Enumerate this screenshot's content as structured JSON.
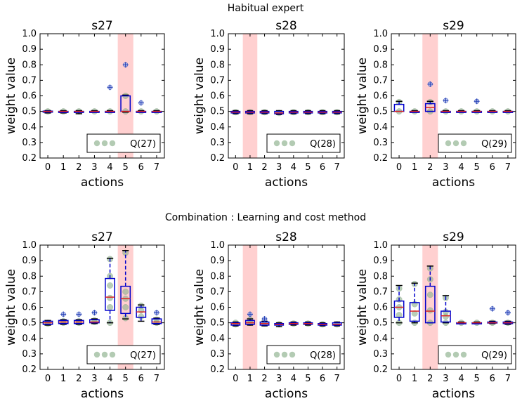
{
  "section_titles": [
    "Habitual expert",
    "Combination : Learning and cost method"
  ],
  "colors": {
    "box": "#0000cc",
    "median": "#dd2222",
    "highlight": "#ffaaaa",
    "point": "#93b593",
    "outlier": "#1f3bb3",
    "legend_point": "#93b593"
  },
  "chart_data": [
    {
      "type": "box",
      "section": "Habitual expert",
      "title": "s27",
      "xlabel": "actions",
      "ylabel": "weight value",
      "x_ticks": [
        "0",
        "1",
        "2",
        "3",
        "4",
        "5",
        "6",
        "7"
      ],
      "ylim": [
        0.2,
        1.0
      ],
      "y_ticks": [
        "0.2",
        "0.3",
        "0.4",
        "0.5",
        "0.6",
        "0.7",
        "0.8",
        "0.9",
        "1.0"
      ],
      "highlight_action": 5,
      "legend": "Q(27)",
      "boxes": [
        {
          "action": 0,
          "q1": 0.495,
          "median": 0.5,
          "q3": 0.502,
          "wlo": 0.49,
          "whi": 0.505,
          "outliers": []
        },
        {
          "action": 1,
          "q1": 0.495,
          "median": 0.5,
          "q3": 0.5,
          "wlo": 0.49,
          "whi": 0.505,
          "outliers": []
        },
        {
          "action": 2,
          "q1": 0.495,
          "median": 0.5,
          "q3": 0.5,
          "wlo": 0.485,
          "whi": 0.505,
          "outliers": []
        },
        {
          "action": 3,
          "q1": 0.5,
          "median": 0.5,
          "q3": 0.5,
          "wlo": 0.495,
          "whi": 0.505,
          "outliers": []
        },
        {
          "action": 4,
          "q1": 0.5,
          "median": 0.5,
          "q3": 0.5,
          "wlo": 0.495,
          "whi": 0.505,
          "outliers": [
            0.655
          ]
        },
        {
          "action": 5,
          "q1": 0.5,
          "median": 0.5,
          "q3": 0.6,
          "wlo": 0.495,
          "whi": 0.605,
          "outliers": [
            0.8
          ]
        },
        {
          "action": 6,
          "q1": 0.5,
          "median": 0.5,
          "q3": 0.5,
          "wlo": 0.495,
          "whi": 0.505,
          "outliers": [
            0.555
          ]
        },
        {
          "action": 7,
          "q1": 0.5,
          "median": 0.5,
          "q3": 0.5,
          "wlo": 0.495,
          "whi": 0.505,
          "outliers": []
        }
      ],
      "points": [
        {
          "action": 0,
          "values": [
            0.5
          ]
        },
        {
          "action": 1,
          "values": [
            0.5
          ]
        },
        {
          "action": 2,
          "values": [
            0.5
          ]
        },
        {
          "action": 3,
          "values": [
            0.5
          ]
        },
        {
          "action": 4,
          "values": [
            0.5
          ]
        },
        {
          "action": 5,
          "values": [
            0.5,
            0.6
          ]
        },
        {
          "action": 6,
          "values": [
            0.5
          ]
        },
        {
          "action": 7,
          "values": [
            0.5
          ]
        }
      ]
    },
    {
      "type": "box",
      "section": "Habitual expert",
      "title": "s28",
      "xlabel": "actions",
      "ylabel": "weight value",
      "x_ticks": [
        "0",
        "1",
        "2",
        "3",
        "4",
        "5",
        "6",
        "7"
      ],
      "ylim": [
        0.2,
        1.0
      ],
      "y_ticks": [
        "0.2",
        "0.3",
        "0.4",
        "0.5",
        "0.6",
        "0.7",
        "0.8",
        "0.9",
        "1.0"
      ],
      "highlight_action": 1,
      "legend": "Q(28)",
      "boxes": [
        {
          "action": 0,
          "q1": 0.49,
          "median": 0.495,
          "q3": 0.5,
          "wlo": 0.485,
          "whi": 0.505,
          "outliers": []
        },
        {
          "action": 1,
          "q1": 0.49,
          "median": 0.495,
          "q3": 0.5,
          "wlo": 0.485,
          "whi": 0.505,
          "outliers": []
        },
        {
          "action": 2,
          "q1": 0.49,
          "median": 0.495,
          "q3": 0.5,
          "wlo": 0.485,
          "whi": 0.505,
          "outliers": []
        },
        {
          "action": 3,
          "q1": 0.485,
          "median": 0.49,
          "q3": 0.5,
          "wlo": 0.48,
          "whi": 0.505,
          "outliers": []
        },
        {
          "action": 4,
          "q1": 0.49,
          "median": 0.495,
          "q3": 0.5,
          "wlo": 0.485,
          "whi": 0.505,
          "outliers": []
        },
        {
          "action": 5,
          "q1": 0.49,
          "median": 0.495,
          "q3": 0.5,
          "wlo": 0.485,
          "whi": 0.505,
          "outliers": []
        },
        {
          "action": 6,
          "q1": 0.49,
          "median": 0.495,
          "q3": 0.5,
          "wlo": 0.485,
          "whi": 0.505,
          "outliers": []
        },
        {
          "action": 7,
          "q1": 0.49,
          "median": 0.495,
          "q3": 0.5,
          "wlo": 0.485,
          "whi": 0.505,
          "outliers": []
        }
      ],
      "points": [
        {
          "action": 0,
          "values": [
            0.495
          ]
        },
        {
          "action": 1,
          "values": [
            0.495
          ]
        },
        {
          "action": 2,
          "values": [
            0.495
          ]
        },
        {
          "action": 3,
          "values": [
            0.49
          ]
        },
        {
          "action": 4,
          "values": [
            0.495
          ]
        },
        {
          "action": 5,
          "values": [
            0.495
          ]
        },
        {
          "action": 6,
          "values": [
            0.495
          ]
        },
        {
          "action": 7,
          "values": [
            0.495
          ]
        }
      ]
    },
    {
      "type": "box",
      "section": "Habitual expert",
      "title": "s29",
      "xlabel": "actions",
      "ylabel": "weight value",
      "x_ticks": [
        "0",
        "1",
        "2",
        "3",
        "4",
        "5",
        "6",
        "7"
      ],
      "ylim": [
        0.2,
        1.0
      ],
      "y_ticks": [
        "0.2",
        "0.3",
        "0.4",
        "0.5",
        "0.6",
        "0.7",
        "0.8",
        "0.9",
        "1.0"
      ],
      "highlight_action": 2,
      "legend": "Q(29)",
      "boxes": [
        {
          "action": 0,
          "q1": 0.5,
          "median": 0.5,
          "q3": 0.545,
          "wlo": 0.5,
          "whi": 0.565,
          "outliers": []
        },
        {
          "action": 1,
          "q1": 0.5,
          "median": 0.5,
          "q3": 0.5,
          "wlo": 0.495,
          "whi": 0.505,
          "outliers": []
        },
        {
          "action": 2,
          "q1": 0.5,
          "median": 0.525,
          "q3": 0.55,
          "wlo": 0.5,
          "whi": 0.565,
          "outliers": [
            0.675
          ]
        },
        {
          "action": 3,
          "q1": 0.5,
          "median": 0.5,
          "q3": 0.5,
          "wlo": 0.495,
          "whi": 0.505,
          "outliers": [
            0.57
          ]
        },
        {
          "action": 4,
          "q1": 0.5,
          "median": 0.5,
          "q3": 0.5,
          "wlo": 0.495,
          "whi": 0.505,
          "outliers": []
        },
        {
          "action": 5,
          "q1": 0.5,
          "median": 0.5,
          "q3": 0.5,
          "wlo": 0.495,
          "whi": 0.505,
          "outliers": [
            0.565
          ]
        },
        {
          "action": 6,
          "q1": 0.5,
          "median": 0.5,
          "q3": 0.5,
          "wlo": 0.495,
          "whi": 0.505,
          "outliers": []
        },
        {
          "action": 7,
          "q1": 0.5,
          "median": 0.5,
          "q3": 0.5,
          "wlo": 0.495,
          "whi": 0.505,
          "outliers": []
        }
      ],
      "points": [
        {
          "action": 0,
          "values": [
            0.5,
            0.56
          ]
        },
        {
          "action": 1,
          "values": [
            0.5
          ]
        },
        {
          "action": 2,
          "values": [
            0.5,
            0.56
          ]
        },
        {
          "action": 3,
          "values": [
            0.5
          ]
        },
        {
          "action": 4,
          "values": [
            0.5
          ]
        },
        {
          "action": 5,
          "values": [
            0.5
          ]
        },
        {
          "action": 6,
          "values": [
            0.5
          ]
        },
        {
          "action": 7,
          "values": [
            0.5
          ]
        }
      ]
    },
    {
      "type": "box",
      "section": "Combination : Learning and cost method",
      "title": "s27",
      "xlabel": "actions",
      "ylabel": "weight value",
      "x_ticks": [
        "0",
        "1",
        "2",
        "3",
        "4",
        "5",
        "6",
        "7"
      ],
      "ylim": [
        0.2,
        1.0
      ],
      "y_ticks": [
        "0.2",
        "0.3",
        "0.4",
        "0.5",
        "0.6",
        "0.7",
        "0.8",
        "0.9",
        "1.0"
      ],
      "highlight_action": 5,
      "legend": "Q(27)",
      "boxes": [
        {
          "action": 0,
          "q1": 0.49,
          "median": 0.5,
          "q3": 0.51,
          "wlo": 0.485,
          "whi": 0.515,
          "outliers": []
        },
        {
          "action": 1,
          "q1": 0.495,
          "median": 0.505,
          "q3": 0.515,
          "wlo": 0.49,
          "whi": 0.52,
          "outliers": [
            0.555
          ]
        },
        {
          "action": 2,
          "q1": 0.495,
          "median": 0.505,
          "q3": 0.515,
          "wlo": 0.49,
          "whi": 0.52,
          "outliers": [
            0.555
          ]
        },
        {
          "action": 3,
          "q1": 0.5,
          "median": 0.505,
          "q3": 0.52,
          "wlo": 0.495,
          "whi": 0.525,
          "outliers": [
            0.565
          ]
        },
        {
          "action": 4,
          "q1": 0.58,
          "median": 0.665,
          "q3": 0.785,
          "wlo": 0.5,
          "whi": 0.915,
          "outliers": []
        },
        {
          "action": 5,
          "q1": 0.56,
          "median": 0.655,
          "q3": 0.735,
          "wlo": 0.525,
          "whi": 0.965,
          "outliers": []
        },
        {
          "action": 6,
          "q1": 0.535,
          "median": 0.57,
          "q3": 0.6,
          "wlo": 0.51,
          "whi": 0.615,
          "outliers": []
        },
        {
          "action": 7,
          "q1": 0.495,
          "median": 0.505,
          "q3": 0.525,
          "wlo": 0.49,
          "whi": 0.53,
          "outliers": [
            0.565
          ]
        }
      ],
      "points": [
        {
          "action": 0,
          "values": [
            0.5,
            0.495
          ]
        },
        {
          "action": 1,
          "values": [
            0.5,
            0.51
          ]
        },
        {
          "action": 2,
          "values": [
            0.5,
            0.51
          ]
        },
        {
          "action": 3,
          "values": [
            0.505,
            0.515
          ]
        },
        {
          "action": 4,
          "values": [
            0.5,
            0.6,
            0.66,
            0.74,
            0.8,
            0.91
          ]
        },
        {
          "action": 5,
          "values": [
            0.53,
            0.6,
            0.655,
            0.7,
            0.95
          ]
        },
        {
          "action": 6,
          "values": [
            0.54,
            0.58,
            0.61
          ]
        },
        {
          "action": 7,
          "values": [
            0.5,
            0.52
          ]
        }
      ]
    },
    {
      "type": "box",
      "section": "Combination : Learning and cost method",
      "title": "s28",
      "xlabel": "actions",
      "ylabel": "weight value",
      "x_ticks": [
        "0",
        "1",
        "2",
        "3",
        "4",
        "5",
        "6",
        "7"
      ],
      "ylim": [
        0.2,
        1.0
      ],
      "y_ticks": [
        "0.2",
        "0.3",
        "0.4",
        "0.5",
        "0.6",
        "0.7",
        "0.8",
        "0.9",
        "1.0"
      ],
      "highlight_action": 1,
      "legend": "Q(28)",
      "boxes": [
        {
          "action": 0,
          "q1": 0.485,
          "median": 0.495,
          "q3": 0.5,
          "wlo": 0.48,
          "whi": 0.505,
          "outliers": []
        },
        {
          "action": 1,
          "q1": 0.49,
          "median": 0.5,
          "q3": 0.515,
          "wlo": 0.485,
          "whi": 0.525,
          "outliers": [
            0.555
          ]
        },
        {
          "action": 2,
          "q1": 0.485,
          "median": 0.495,
          "q3": 0.505,
          "wlo": 0.48,
          "whi": 0.51,
          "outliers": [
            0.525
          ]
        },
        {
          "action": 3,
          "q1": 0.485,
          "median": 0.49,
          "q3": 0.495,
          "wlo": 0.475,
          "whi": 0.5,
          "outliers": []
        },
        {
          "action": 4,
          "q1": 0.49,
          "median": 0.495,
          "q3": 0.5,
          "wlo": 0.485,
          "whi": 0.505,
          "outliers": []
        },
        {
          "action": 5,
          "q1": 0.49,
          "median": 0.495,
          "q3": 0.5,
          "wlo": 0.485,
          "whi": 0.505,
          "outliers": []
        },
        {
          "action": 6,
          "q1": 0.485,
          "median": 0.49,
          "q3": 0.495,
          "wlo": 0.48,
          "whi": 0.5,
          "outliers": []
        },
        {
          "action": 7,
          "q1": 0.485,
          "median": 0.49,
          "q3": 0.5,
          "wlo": 0.48,
          "whi": 0.505,
          "outliers": []
        }
      ],
      "points": [
        {
          "action": 0,
          "values": [
            0.49,
            0.5
          ]
        },
        {
          "action": 1,
          "values": [
            0.5,
            0.52
          ]
        },
        {
          "action": 2,
          "values": [
            0.495
          ]
        },
        {
          "action": 3,
          "values": [
            0.49
          ]
        },
        {
          "action": 4,
          "values": [
            0.495
          ]
        },
        {
          "action": 5,
          "values": [
            0.495
          ]
        },
        {
          "action": 6,
          "values": [
            0.49
          ]
        },
        {
          "action": 7,
          "values": [
            0.49
          ]
        }
      ]
    },
    {
      "type": "box",
      "section": "Combination : Learning and cost method",
      "title": "s29",
      "xlabel": "actions",
      "ylabel": "weight value",
      "x_ticks": [
        "0",
        "1",
        "2",
        "3",
        "4",
        "5",
        "6",
        "7"
      ],
      "ylim": [
        0.2,
        1.0
      ],
      "y_ticks": [
        "0.2",
        "0.3",
        "0.4",
        "0.5",
        "0.6",
        "0.7",
        "0.8",
        "0.9",
        "1.0"
      ],
      "highlight_action": 2,
      "legend": "Q(29)",
      "boxes": [
        {
          "action": 0,
          "q1": 0.535,
          "median": 0.6,
          "q3": 0.64,
          "wlo": 0.5,
          "whi": 0.74,
          "outliers": []
        },
        {
          "action": 1,
          "q1": 0.51,
          "median": 0.575,
          "q3": 0.63,
          "wlo": 0.5,
          "whi": 0.755,
          "outliers": []
        },
        {
          "action": 2,
          "q1": 0.5,
          "median": 0.575,
          "q3": 0.735,
          "wlo": 0.5,
          "whi": 0.865,
          "outliers": []
        },
        {
          "action": 3,
          "q1": 0.505,
          "median": 0.545,
          "q3": 0.575,
          "wlo": 0.5,
          "whi": 0.675,
          "outliers": []
        },
        {
          "action": 4,
          "q1": 0.5,
          "median": 0.5,
          "q3": 0.5,
          "wlo": 0.495,
          "whi": 0.505,
          "outliers": []
        },
        {
          "action": 5,
          "q1": 0.5,
          "median": 0.5,
          "q3": 0.5,
          "wlo": 0.495,
          "whi": 0.505,
          "outliers": []
        },
        {
          "action": 6,
          "q1": 0.5,
          "median": 0.5,
          "q3": 0.505,
          "wlo": 0.495,
          "whi": 0.51,
          "outliers": [
            0.59
          ]
        },
        {
          "action": 7,
          "q1": 0.495,
          "median": 0.5,
          "q3": 0.505,
          "wlo": 0.49,
          "whi": 0.51,
          "outliers": [
            0.565
          ]
        }
      ],
      "points": [
        {
          "action": 0,
          "values": [
            0.5,
            0.55,
            0.6,
            0.65,
            0.72
          ]
        },
        {
          "action": 1,
          "values": [
            0.5,
            0.56,
            0.62,
            0.75
          ]
        },
        {
          "action": 2,
          "values": [
            0.5,
            0.58,
            0.68,
            0.78,
            0.85
          ]
        },
        {
          "action": 3,
          "values": [
            0.5,
            0.54,
            0.57,
            0.66
          ]
        },
        {
          "action": 4,
          "values": [
            0.5
          ]
        },
        {
          "action": 5,
          "values": [
            0.5
          ]
        },
        {
          "action": 6,
          "values": [
            0.5
          ]
        },
        {
          "action": 7,
          "values": [
            0.5
          ]
        }
      ]
    }
  ]
}
